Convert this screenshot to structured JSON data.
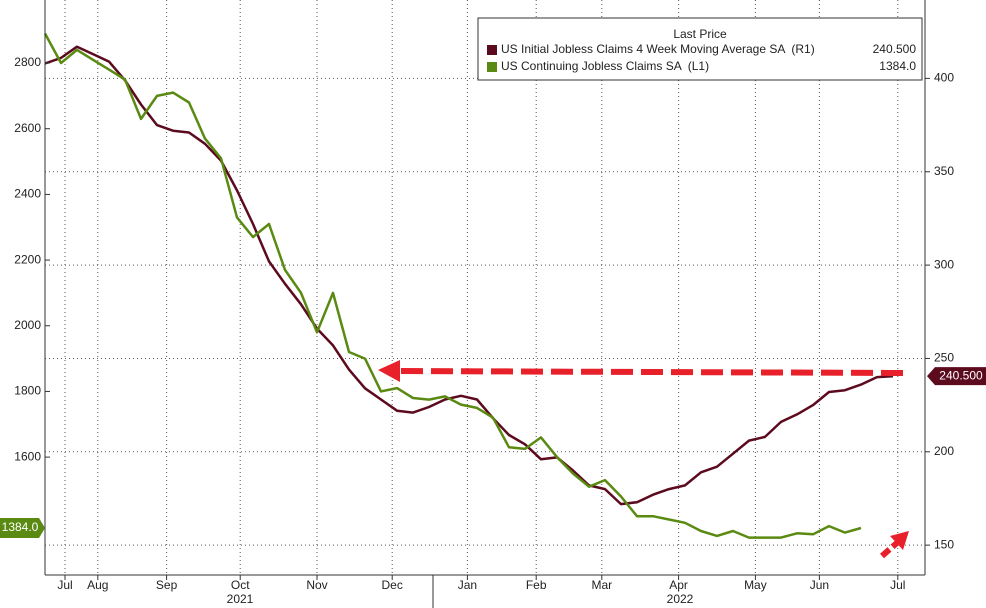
{
  "chart_data": {
    "type": "line",
    "legend_title": "Last Price",
    "year_labels": [
      "2021",
      "2022"
    ],
    "xlim": [
      0,
      55
    ],
    "xticks": [
      {
        "value": 1.25,
        "label": "Jul"
      },
      {
        "value": 3.3,
        "label": "Aug"
      },
      {
        "value": 7.6,
        "label": "Sep"
      },
      {
        "value": 12.2,
        "label": "Oct"
      },
      {
        "value": 17,
        "label": "Nov"
      },
      {
        "value": 21.7,
        "label": "Dec"
      },
      {
        "value": 26.4,
        "label": "Jan"
      },
      {
        "value": 30.7,
        "label": "Feb"
      },
      {
        "value": 34.8,
        "label": "Mar"
      },
      {
        "value": 39.6,
        "label": "Apr"
      },
      {
        "value": 44.4,
        "label": "May"
      },
      {
        "value": 48.4,
        "label": "Jun"
      },
      {
        "value": 53.3,
        "label": "Jul"
      }
    ],
    "ylim": [
      1241,
      2992
    ],
    "yticks": [
      1600,
      1800,
      2000,
      2200,
      2400,
      2600,
      2800
    ],
    "y2lim": [
      134,
      442
    ],
    "y2ticks": [
      150,
      200,
      250,
      300,
      350,
      400
    ],
    "grid": true,
    "series": [
      {
        "name": "US Initial Jobless Claims 4 Week Moving Average SA  (R1)",
        "color": "#5c0a1e",
        "axis": "y2",
        "last_value_label": "240.500",
        "values": [
          408,
          411,
          417,
          413,
          409,
          399,
          386,
          375,
          372,
          371,
          365,
          356,
          340,
          322,
          302,
          290,
          279,
          266,
          257,
          244,
          234,
          228,
          222,
          221,
          224,
          228,
          230,
          228,
          218,
          209,
          204,
          196,
          197,
          190,
          182,
          180,
          172,
          173,
          177,
          180,
          182,
          189,
          192,
          199,
          206,
          208,
          216,
          220,
          225,
          232,
          233,
          236,
          240,
          240.5
        ]
      },
      {
        "name": "US Continuing Jobless Claims SA  (L1)",
        "color": "#5a8a12",
        "axis": "y",
        "last_value_label": "1384.0",
        "values": [
          2890,
          2800,
          2840,
          2810,
          2780,
          2750,
          2630,
          2700,
          2710,
          2680,
          2570,
          2510,
          2330,
          2270,
          2310,
          2170,
          2100,
          1980,
          2100,
          1920,
          1900,
          1800,
          1810,
          1780,
          1775,
          1785,
          1760,
          1750,
          1720,
          1630,
          1625,
          1660,
          1600,
          1550,
          1510,
          1530,
          1480,
          1420,
          1420,
          1410,
          1400,
          1375,
          1360,
          1375,
          1355,
          1355,
          1355,
          1368,
          1365,
          1390,
          1370,
          1384
        ]
      }
    ]
  }
}
